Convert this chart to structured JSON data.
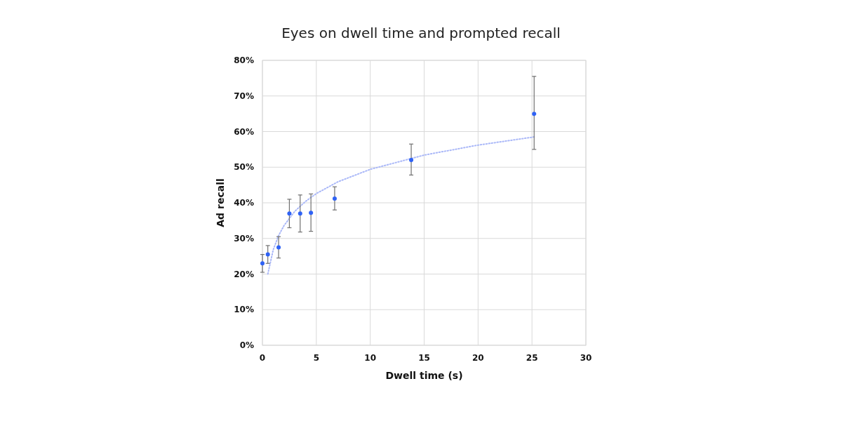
{
  "chart_data": {
    "type": "scatter",
    "title": "Eyes on dwell time and prompted recall",
    "xlabel": "Dwell time (s)",
    "ylabel": "Ad recall",
    "xlim": [
      0,
      30
    ],
    "xticks": [
      0,
      5,
      10,
      15,
      20,
      25,
      30
    ],
    "ylim": [
      0,
      80
    ],
    "yticks": [
      {
        "value": 0,
        "label": "0%"
      },
      {
        "value": 10,
        "label": "10%"
      },
      {
        "value": 20,
        "label": "20%"
      },
      {
        "value": 30,
        "label": "30%"
      },
      {
        "value": 40,
        "label": "40%"
      },
      {
        "value": 50,
        "label": "50%"
      },
      {
        "value": 60,
        "label": "60%"
      },
      {
        "value": 70,
        "label": "70%"
      },
      {
        "value": 80,
        "label": "80%"
      }
    ],
    "grid": true,
    "marker": "circle",
    "series": [
      {
        "color": "#2f62f5",
        "x": [
          0,
          0.5,
          1.5,
          2.5,
          3.5,
          4.5,
          6.7,
          13.8,
          25.2
        ],
        "values": [
          23,
          25.5,
          27.5,
          37,
          37,
          37.2,
          41.2,
          52,
          65
        ],
        "errors": [
          [
            20.5,
            25.5
          ],
          [
            23,
            28
          ],
          [
            24.5,
            30.5
          ],
          [
            33,
            41
          ],
          [
            31.8,
            42.2
          ],
          [
            32,
            42.5
          ],
          [
            38,
            44.5
          ],
          [
            47.8,
            56.5
          ],
          [
            55,
            75.5
          ]
        ]
      },
      {
        "type": "line",
        "color": "#aab8f8",
        "line_style": "dotted",
        "marker": "none",
        "x": [
          0.5,
          1,
          1.5,
          2,
          3,
          4,
          5,
          7,
          10,
          15,
          20,
          25.2
        ],
        "values": [
          20,
          26.8,
          30.8,
          33.6,
          37.6,
          40.4,
          42.6,
          45.9,
          49.4,
          53.4,
          56.2,
          58.5
        ]
      }
    ]
  }
}
